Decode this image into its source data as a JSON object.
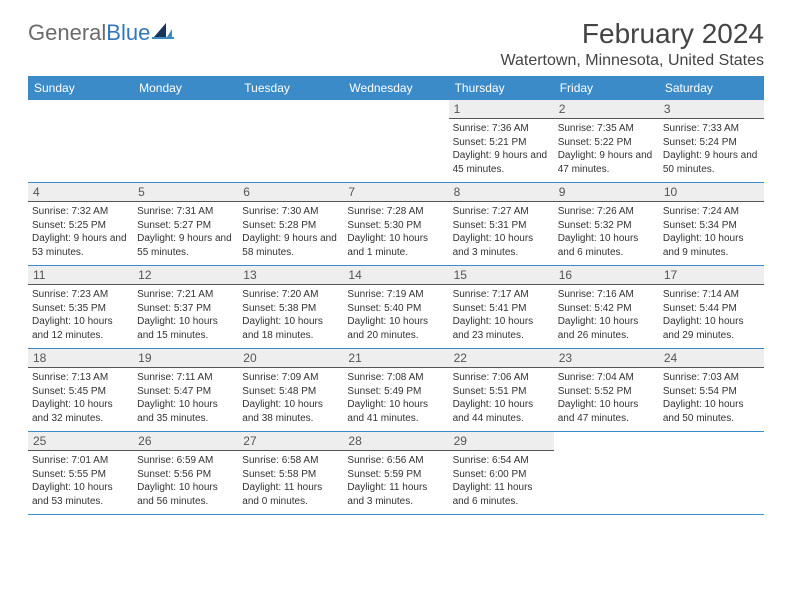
{
  "logo": {
    "text_gray": "General",
    "text_blue": "Blue"
  },
  "title": "February 2024",
  "location": "Watertown, Minnesota, United States",
  "colors": {
    "header_bg": "#3b8bc8",
    "daynum_bg": "#eeeeee",
    "border": "#3b8bc8",
    "logo_gray": "#6b6b6b",
    "logo_blue": "#3178bd"
  },
  "daysOfWeek": [
    "Sunday",
    "Monday",
    "Tuesday",
    "Wednesday",
    "Thursday",
    "Friday",
    "Saturday"
  ],
  "weeks": [
    [
      null,
      null,
      null,
      null,
      {
        "n": "1",
        "sr": "7:36 AM",
        "ss": "5:21 PM",
        "dl": "9 hours and 45 minutes."
      },
      {
        "n": "2",
        "sr": "7:35 AM",
        "ss": "5:22 PM",
        "dl": "9 hours and 47 minutes."
      },
      {
        "n": "3",
        "sr": "7:33 AM",
        "ss": "5:24 PM",
        "dl": "9 hours and 50 minutes."
      }
    ],
    [
      {
        "n": "4",
        "sr": "7:32 AM",
        "ss": "5:25 PM",
        "dl": "9 hours and 53 minutes."
      },
      {
        "n": "5",
        "sr": "7:31 AM",
        "ss": "5:27 PM",
        "dl": "9 hours and 55 minutes."
      },
      {
        "n": "6",
        "sr": "7:30 AM",
        "ss": "5:28 PM",
        "dl": "9 hours and 58 minutes."
      },
      {
        "n": "7",
        "sr": "7:28 AM",
        "ss": "5:30 PM",
        "dl": "10 hours and 1 minute."
      },
      {
        "n": "8",
        "sr": "7:27 AM",
        "ss": "5:31 PM",
        "dl": "10 hours and 3 minutes."
      },
      {
        "n": "9",
        "sr": "7:26 AM",
        "ss": "5:32 PM",
        "dl": "10 hours and 6 minutes."
      },
      {
        "n": "10",
        "sr": "7:24 AM",
        "ss": "5:34 PM",
        "dl": "10 hours and 9 minutes."
      }
    ],
    [
      {
        "n": "11",
        "sr": "7:23 AM",
        "ss": "5:35 PM",
        "dl": "10 hours and 12 minutes."
      },
      {
        "n": "12",
        "sr": "7:21 AM",
        "ss": "5:37 PM",
        "dl": "10 hours and 15 minutes."
      },
      {
        "n": "13",
        "sr": "7:20 AM",
        "ss": "5:38 PM",
        "dl": "10 hours and 18 minutes."
      },
      {
        "n": "14",
        "sr": "7:19 AM",
        "ss": "5:40 PM",
        "dl": "10 hours and 20 minutes."
      },
      {
        "n": "15",
        "sr": "7:17 AM",
        "ss": "5:41 PM",
        "dl": "10 hours and 23 minutes."
      },
      {
        "n": "16",
        "sr": "7:16 AM",
        "ss": "5:42 PM",
        "dl": "10 hours and 26 minutes."
      },
      {
        "n": "17",
        "sr": "7:14 AM",
        "ss": "5:44 PM",
        "dl": "10 hours and 29 minutes."
      }
    ],
    [
      {
        "n": "18",
        "sr": "7:13 AM",
        "ss": "5:45 PM",
        "dl": "10 hours and 32 minutes."
      },
      {
        "n": "19",
        "sr": "7:11 AM",
        "ss": "5:47 PM",
        "dl": "10 hours and 35 minutes."
      },
      {
        "n": "20",
        "sr": "7:09 AM",
        "ss": "5:48 PM",
        "dl": "10 hours and 38 minutes."
      },
      {
        "n": "21",
        "sr": "7:08 AM",
        "ss": "5:49 PM",
        "dl": "10 hours and 41 minutes."
      },
      {
        "n": "22",
        "sr": "7:06 AM",
        "ss": "5:51 PM",
        "dl": "10 hours and 44 minutes."
      },
      {
        "n": "23",
        "sr": "7:04 AM",
        "ss": "5:52 PM",
        "dl": "10 hours and 47 minutes."
      },
      {
        "n": "24",
        "sr": "7:03 AM",
        "ss": "5:54 PM",
        "dl": "10 hours and 50 minutes."
      }
    ],
    [
      {
        "n": "25",
        "sr": "7:01 AM",
        "ss": "5:55 PM",
        "dl": "10 hours and 53 minutes."
      },
      {
        "n": "26",
        "sr": "6:59 AM",
        "ss": "5:56 PM",
        "dl": "10 hours and 56 minutes."
      },
      {
        "n": "27",
        "sr": "6:58 AM",
        "ss": "5:58 PM",
        "dl": "11 hours and 0 minutes."
      },
      {
        "n": "28",
        "sr": "6:56 AM",
        "ss": "5:59 PM",
        "dl": "11 hours and 3 minutes."
      },
      {
        "n": "29",
        "sr": "6:54 AM",
        "ss": "6:00 PM",
        "dl": "11 hours and 6 minutes."
      },
      null,
      null
    ]
  ],
  "labels": {
    "sunrise": "Sunrise:",
    "sunset": "Sunset:",
    "daylight": "Daylight:"
  }
}
